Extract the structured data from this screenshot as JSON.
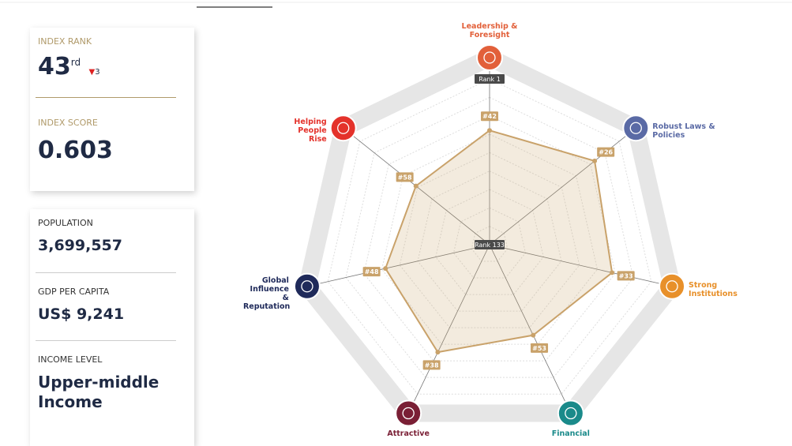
{
  "sidebar": {
    "index_rank": {
      "label": "INDEX RANK",
      "value": "43",
      "suffix": "rd",
      "change": "3"
    },
    "index_score": {
      "label": "INDEX SCORE",
      "value": "0.603"
    },
    "population": {
      "label": "POPULATION",
      "value": "3,699,557"
    },
    "gdp_per_capita": {
      "label": "GDP PER CAPITA",
      "value": "US$ 9,241"
    },
    "income_level": {
      "label": "INCOME LEVEL",
      "value": "Upper-middle Income"
    }
  },
  "chart_data": {
    "type": "radar",
    "categories": [
      "Leadership & Foresight",
      "Robust Laws & Policies",
      "Strong Institutions",
      "Financial",
      "Attractive",
      "Global Influence & Reputation",
      "Helping People Rise"
    ],
    "category_colors": [
      "#e2603a",
      "#5a6aa5",
      "#e8902a",
      "#1a8a8a",
      "#7a1f35",
      "#1f2a5a",
      "#e4322b"
    ],
    "values": [
      42,
      26,
      33,
      53,
      38,
      48,
      58
    ],
    "value_labels": [
      "#42",
      "#26",
      "#33",
      "#53",
      "#38",
      "#48",
      "#58"
    ],
    "color": "#c9a26a",
    "rlim": [
      133,
      1
    ],
    "rticks": [
      {
        "value": 133,
        "label": "Rank 133"
      },
      {
        "value": 1,
        "label": "Rank 1"
      }
    ],
    "grid": true
  }
}
